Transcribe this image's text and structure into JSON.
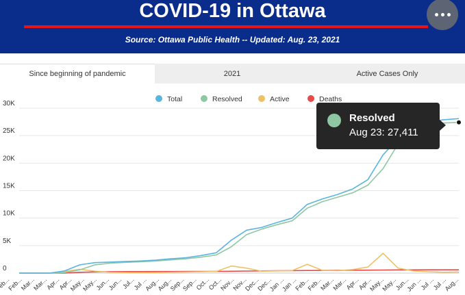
{
  "header": {
    "title": "COVID-19 in Ottawa",
    "subtitle": "Source:  Ottawa Public Health -- Updated:  Aug. 23, 2021"
  },
  "tabs": [
    {
      "label": "Since beginning of pandemic",
      "active": true
    },
    {
      "label": "2021",
      "active": false
    },
    {
      "label": "Active Cases Only",
      "active": false
    }
  ],
  "tooltip": {
    "series": "Resolved",
    "text": "Aug 23: 27,411"
  },
  "chart_data": {
    "type": "line",
    "legend_position": "top-center",
    "ylim": [
      0,
      30000
    ],
    "y_ticks": [
      "0",
      "5K",
      "10K",
      "15K",
      "20K",
      "25K",
      "30K"
    ],
    "x_ticks": [
      "Feb...",
      "Feb...",
      "Mar...",
      "Mar...",
      "Apr...",
      "Apr...",
      "May...",
      "May...",
      "Jun...",
      "Jun...",
      "Jul...",
      "Jul ...",
      "Aug...",
      "Aug...",
      "Sep...",
      "Sep...",
      "Oct...",
      "Oct...",
      "Nov...",
      "Nov...",
      "Dec...",
      "Dec...",
      "Jan ...",
      "Jan ...",
      "Feb...",
      "Feb...",
      "Mar...",
      "Mar...",
      "Apr...",
      "Apr...",
      "May...",
      "May...",
      "Jun...",
      "Jun ...",
      "Jul ...",
      "Jul ...",
      "Aug..."
    ],
    "series": [
      {
        "name": "Total",
        "color": "#59b4e0",
        "values": [
          0,
          0,
          0,
          400,
          1500,
          1900,
          2000,
          2100,
          2200,
          2350,
          2600,
          2800,
          3200,
          3700,
          6000,
          7800,
          8300,
          9200,
          10000,
          12500,
          13500,
          14300,
          15300,
          17000,
          21500,
          24500,
          26500,
          27500,
          27900,
          28100
        ]
      },
      {
        "name": "Resolved",
        "color": "#8fc7a3",
        "values": [
          0,
          0,
          0,
          100,
          600,
          1500,
          1800,
          1950,
          2050,
          2200,
          2400,
          2600,
          2900,
          3300,
          4800,
          7000,
          8000,
          8800,
          9500,
          11800,
          13000,
          13800,
          14600,
          16000,
          19000,
          23500,
          26000,
          27100,
          27300,
          27411
        ]
      },
      {
        "name": "Active",
        "color": "#eec166",
        "values": [
          0,
          0,
          0,
          300,
          700,
          350,
          150,
          100,
          80,
          100,
          150,
          200,
          250,
          300,
          1300,
          900,
          350,
          400,
          450,
          1600,
          500,
          450,
          650,
          1100,
          3600,
          900,
          400,
          250,
          150,
          200
        ]
      },
      {
        "name": "Deaths",
        "color": "#e84a4a",
        "values": [
          0,
          0,
          0,
          10,
          150,
          230,
          260,
          270,
          280,
          285,
          290,
          295,
          300,
          310,
          330,
          370,
          400,
          430,
          450,
          470,
          490,
          510,
          525,
          540,
          560,
          580,
          590,
          595,
          598,
          600
        ]
      }
    ]
  }
}
